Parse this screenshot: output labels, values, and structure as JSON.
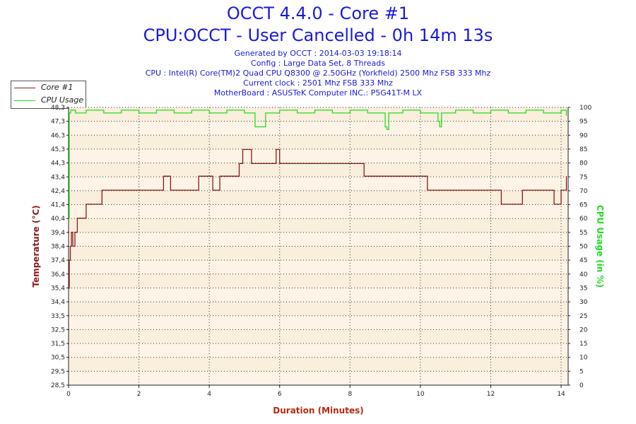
{
  "title": "OCCT 4.4.0 - Core #1",
  "subtitle": "CPU:OCCT - User Cancelled - 0h 14m 13s",
  "info_lines": [
    "Generated by OCCT : 2014-03-03 19:18:14",
    "Config : Large Data Set, 8 Threads",
    "CPU : Intel(R) Core(TM)2 Quad CPU Q8300 @ 2.50GHz (Yorkfield) 2500 Mhz FSB 333 Mhz",
    "Current clock : 2501 Mhz FSB 333 Mhz",
    "MotherBoard : ASUSTeK Computer INC.: P5G41T-M LX"
  ],
  "legend": [
    {
      "label": "Core #1",
      "color": "#8b1a1a"
    },
    {
      "label": "CPU Usage",
      "color": "#22dd22"
    }
  ],
  "chart_data": {
    "type": "line",
    "xlabel": "Duration (Minutes)",
    "ylabel_left": "Temperature (°C)",
    "ylabel_right": "CPU Usage (in %)",
    "xlim": [
      0,
      14.2
    ],
    "x_ticks": [
      "0",
      "2",
      "4",
      "6",
      "8",
      "10",
      "12",
      "14"
    ],
    "ylim_left": [
      28.5,
      48.3
    ],
    "y_ticks_left": [
      "28,5",
      "29,5",
      "30,5",
      "31,5",
      "32,5",
      "33,5",
      "34,4",
      "35,4",
      "36,4",
      "37,4",
      "38,4",
      "39,4",
      "40,4",
      "41,4",
      "42,4",
      "43,4",
      "44,3",
      "45,3",
      "46,3",
      "47,3",
      "48,3"
    ],
    "ylim_right": [
      0,
      100
    ],
    "y_ticks_right": [
      "0",
      "5",
      "10",
      "15",
      "20",
      "25",
      "30",
      "35",
      "40",
      "45",
      "50",
      "55",
      "60",
      "65",
      "70",
      "75",
      "80",
      "85",
      "90",
      "95",
      "100"
    ],
    "grid": true,
    "legend_position": "top-left",
    "series": [
      {
        "name": "Core #1",
        "axis": "left",
        "color": "#8b1a1a",
        "x": [
          0,
          0.02,
          0.05,
          0.08,
          0.12,
          0.18,
          0.25,
          0.32,
          0.4,
          0.5,
          0.65,
          0.8,
          0.95,
          1.1,
          1.3,
          1.5,
          1.7,
          1.9,
          2.1,
          2.3,
          2.5,
          2.7,
          2.9,
          3.1,
          3.3,
          3.5,
          3.7,
          3.9,
          4.1,
          4.3,
          4.5,
          4.7,
          4.85,
          4.95,
          5.2,
          5.4,
          5.6,
          5.8,
          5.9,
          6.0,
          6.3,
          6.6,
          6.9,
          7.2,
          7.5,
          7.8,
          8.1,
          8.4,
          8.7,
          9.0,
          9.3,
          9.6,
          9.9,
          10.2,
          10.5,
          10.8,
          11.1,
          11.4,
          11.7,
          12.0,
          12.3,
          12.6,
          12.9,
          13.2,
          13.5,
          13.8,
          14.0,
          14.15
        ],
        "y": [
          35.4,
          37.4,
          38.4,
          39.4,
          38.4,
          39.4,
          40.4,
          40.4,
          40.4,
          41.4,
          41.4,
          41.4,
          42.4,
          42.4,
          42.4,
          42.4,
          42.4,
          42.4,
          42.4,
          42.4,
          42.4,
          43.4,
          42.4,
          42.4,
          42.4,
          42.4,
          43.4,
          43.4,
          42.4,
          43.4,
          43.4,
          43.4,
          44.3,
          45.3,
          44.3,
          44.3,
          44.3,
          44.3,
          45.3,
          44.3,
          44.3,
          44.3,
          44.3,
          44.3,
          44.3,
          44.3,
          44.3,
          43.4,
          43.4,
          43.4,
          43.4,
          43.4,
          43.4,
          42.4,
          42.4,
          42.4,
          42.4,
          42.4,
          42.4,
          42.4,
          41.4,
          41.4,
          42.4,
          42.4,
          42.4,
          41.4,
          42.4,
          43.4
        ]
      },
      {
        "name": "CPU Usage",
        "axis": "right",
        "color": "#22dd22",
        "x": [
          0,
          0.02,
          0.06,
          0.2,
          0.5,
          1.0,
          1.5,
          2.0,
          2.5,
          3.0,
          3.5,
          4.0,
          4.5,
          5.0,
          5.3,
          5.6,
          6.0,
          6.5,
          7.0,
          7.5,
          8.0,
          8.5,
          9.0,
          9.05,
          9.1,
          9.5,
          10.0,
          10.5,
          10.55,
          10.6,
          11.0,
          11.5,
          12.0,
          12.5,
          13.0,
          13.5,
          14.0,
          14.15
        ],
        "y": [
          60,
          98,
          99,
          98,
          99,
          98,
          99,
          98,
          99,
          98,
          99,
          98,
          99,
          98,
          93,
          98,
          99,
          98,
          99,
          98,
          99,
          98,
          93,
          92,
          98,
          99,
          98,
          95,
          93,
          98,
          99,
          98,
          99,
          98,
          99,
          98,
          99,
          97
        ]
      }
    ]
  }
}
